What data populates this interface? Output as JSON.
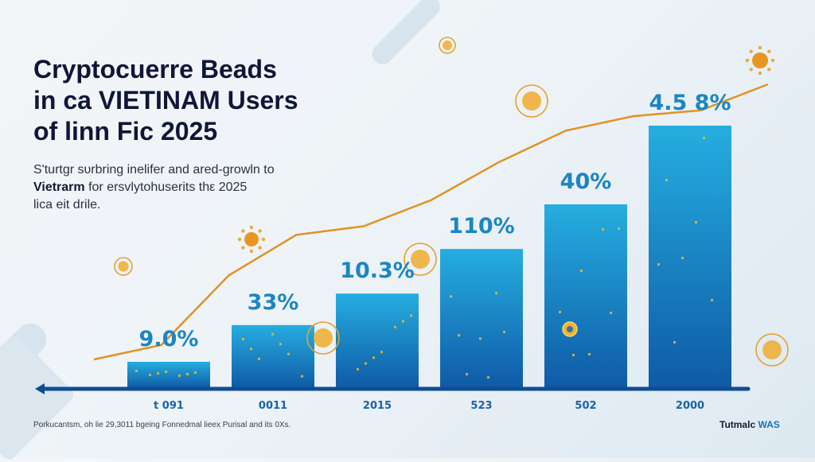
{
  "header": {
    "title_lines": [
      "Cryptocuerre Beads",
      "in ca VIETINAM Users",
      "of linn Fic 2025"
    ],
    "subtitle_lines": [
      {
        "bold": "",
        "text": "S'turtgr sυrbring inelifer and ared-growln to"
      },
      {
        "bold": "Vietrarm",
        "text": " for ersvlytohuserits thε 2025"
      },
      {
        "bold": "",
        "text": "lica eit drile."
      }
    ]
  },
  "footer": {
    "footnote": "Porkucantsm, oh lie 29,3011 bgeing Fonnedmal lieex Purisal and its 0Xs.",
    "brand_prefix": "Tutmalc ",
    "brand_accent": "WAS"
  },
  "colors": {
    "bar_top": "#26aee0",
    "bar_bottom": "#0f5aa6",
    "axis": "#0f4c95",
    "trend": "#e09224",
    "title": "#0f1637",
    "label": "#1b86c3"
  },
  "chart_data": {
    "type": "bar",
    "title": "Cryptocuerre Beads in ca VIETINAM Users of linn Fic 2025",
    "xlabel": "",
    "ylabel": "",
    "categories": [
      "t 091",
      "0011",
      "2015",
      "523",
      "502",
      "2000"
    ],
    "series": [
      {
        "name": "users",
        "values": [
          1.0,
          2.4,
          3.6,
          5.3,
          7.0,
          10.0
        ]
      }
    ],
    "data_labels": [
      "9.0%",
      "33%",
      "10.3%",
      "110%",
      "40%",
      "4.5 8%"
    ],
    "trend_line": {
      "name": "growth trend",
      "values": [
        1.0,
        1.5,
        3.9,
        5.3,
        5.6,
        6.5,
        7.8,
        8.9,
        9.4,
        9.6,
        10.5
      ],
      "color": "#e09224"
    },
    "ylim": [
      0,
      10.5
    ],
    "grid": false,
    "legend": "none"
  },
  "decorations": {
    "icons": [
      "coin-icon",
      "sun-icon",
      "coin-icon",
      "coin-icon",
      "coin-icon",
      "coin-icon",
      "sun-icon",
      "coin-icon",
      "coin-icon"
    ]
  }
}
